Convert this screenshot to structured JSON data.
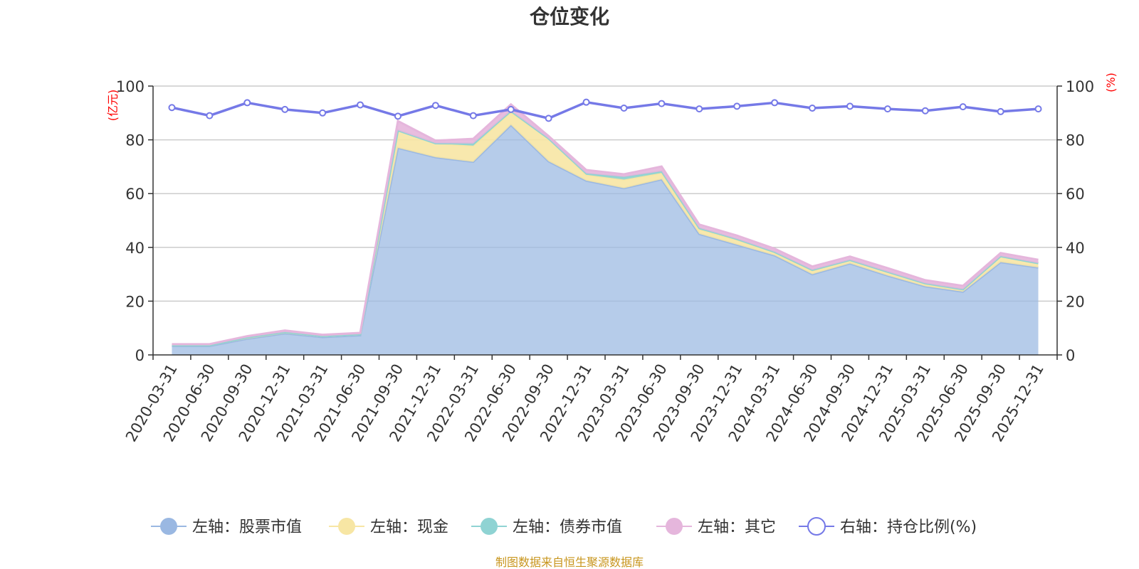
{
  "chart_data": {
    "type": "area",
    "title": "仓位变化",
    "left_unit": "(亿元)",
    "right_unit": "(%)",
    "source": "制图数据来自恒生聚源数据库",
    "categories": [
      "2020-03-31",
      "2020-06-30",
      "2020-09-30",
      "2020-12-31",
      "2021-03-31",
      "2021-06-30",
      "2021-09-30",
      "2021-12-31",
      "2022-03-31",
      "2022-06-30",
      "2022-09-30",
      "2022-12-31",
      "2023-03-31",
      "2023-06-30",
      "2023-09-30",
      "2023-12-31",
      "2024-03-31",
      "2024-06-30",
      "2024-09-30",
      "2024-12-31",
      "2025-03-31",
      "2025-06-30",
      "2025-09-30",
      "2025-12-31"
    ],
    "left_axis": {
      "min": 0,
      "max": 100,
      "ticks": [
        "0",
        "20",
        "40",
        "60",
        "80",
        "100"
      ]
    },
    "right_axis": {
      "min": 0,
      "max": 100,
      "ticks": [
        "0",
        "20",
        "40",
        "60",
        "80",
        "100"
      ]
    },
    "stacked": true,
    "series": [
      {
        "name": "左轴：股票市值",
        "axis": "left",
        "type": "area",
        "color": "#9ab8e2",
        "values": [
          3.3,
          3.3,
          6.0,
          8.0,
          6.6,
          7.3,
          77.0,
          73.5,
          71.8,
          85.5,
          72.0,
          64.8,
          62.0,
          65.3,
          45.0,
          41.0,
          37.0,
          30.0,
          34.0,
          29.5,
          25.5,
          23.5,
          34.5,
          32.5
        ]
      },
      {
        "name": "左轴：现金",
        "axis": "left",
        "type": "area",
        "color": "#f7e6a4",
        "values": [
          0.3,
          0.3,
          0.5,
          0.5,
          0.4,
          0.4,
          6.5,
          5.2,
          6.0,
          4.8,
          8.5,
          2.2,
          3.2,
          2.4,
          1.7,
          1.9,
          1.2,
          1.3,
          1.3,
          1.4,
          1.1,
          0.9,
          2.2,
          1.6
        ]
      },
      {
        "name": "左轴：债券市值",
        "axis": "left",
        "type": "area",
        "color": "#8fd3d3",
        "values": [
          0,
          0,
          0,
          0,
          0,
          0,
          0,
          0,
          0.8,
          0.4,
          0,
          0.5,
          1.0,
          0.6,
          0.5,
          0.2,
          0.1,
          0.3,
          0,
          0,
          0,
          0,
          0,
          0
        ]
      },
      {
        "name": "左轴：其它",
        "axis": "left",
        "type": "area",
        "color": "#e5b6dc",
        "values": [
          0.4,
          0.4,
          0.5,
          0.6,
          0.5,
          0.5,
          3.5,
          1.0,
          1.8,
          2.5,
          0.9,
          1.3,
          1.0,
          1.8,
          1.3,
          1.3,
          1.2,
          1.3,
          1.3,
          1.4,
          1.2,
          1.3,
          1.2,
          1.3
        ]
      },
      {
        "name": "右轴：持仓比例(%)",
        "axis": "right",
        "type": "line",
        "color": "#7579e7",
        "values": [
          92.0,
          89.0,
          93.8,
          91.3,
          90.0,
          93.0,
          88.8,
          92.8,
          89.0,
          91.3,
          88.0,
          94.0,
          91.8,
          93.5,
          91.5,
          92.5,
          93.8,
          91.8,
          92.5,
          91.5,
          90.8,
          92.3,
          90.5,
          91.5
        ]
      }
    ]
  }
}
